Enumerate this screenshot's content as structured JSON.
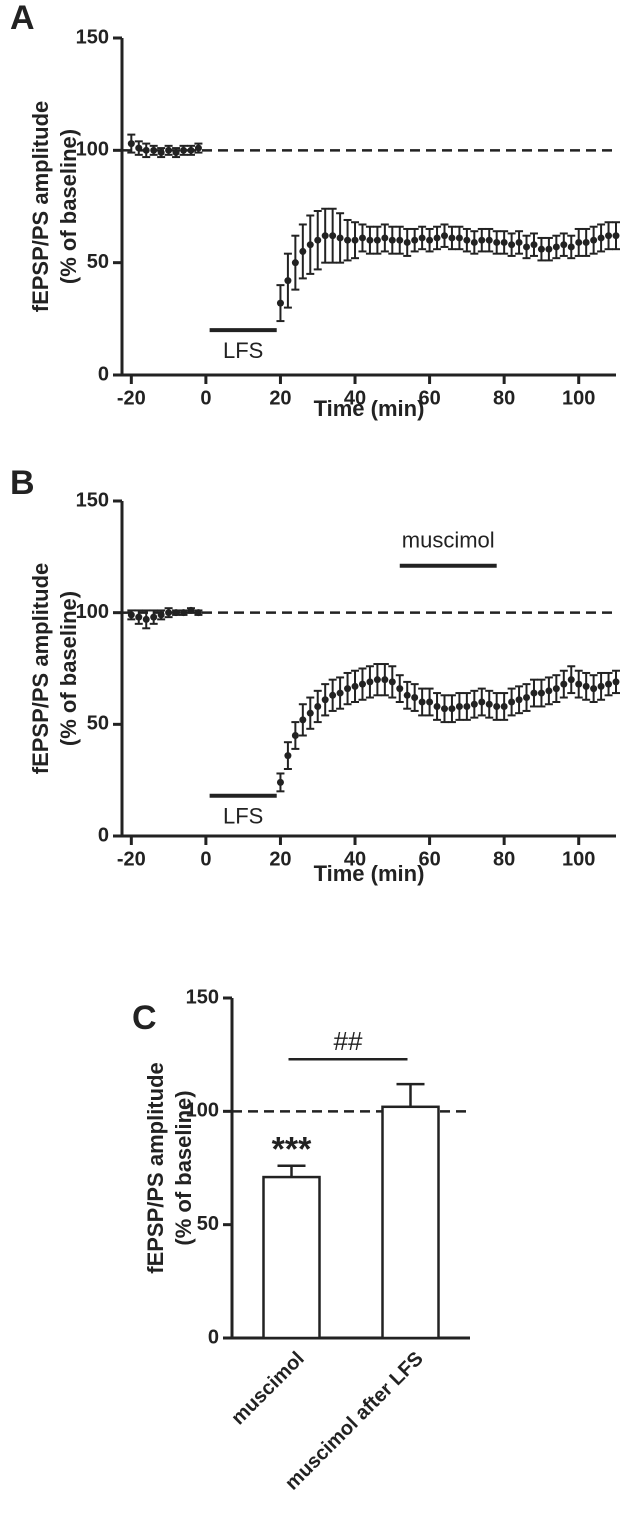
{
  "chart_data": [
    {
      "type": "scatter",
      "label": "A",
      "x_label": "Time (min)",
      "y_label": [
        "fEPSP/PS amplitude",
        "(% of baseline)"
      ],
      "xlim": [
        -22.5,
        110
      ],
      "xticks": [
        -20,
        0,
        20,
        40,
        60,
        80,
        100
      ],
      "ylim": [
        0,
        150
      ],
      "yticks": [
        0,
        50,
        100,
        150
      ],
      "reference_line": 100,
      "color": "#222222",
      "spans": [
        {
          "label": "LFS",
          "x": [
            1,
            19
          ],
          "y": 20
        }
      ],
      "x": [
        -20,
        -18,
        -16,
        -14,
        -12,
        -10,
        -8,
        -6,
        -4,
        -2,
        20,
        22,
        24,
        26,
        28,
        30,
        32,
        34,
        36,
        38,
        40,
        42,
        44,
        46,
        48,
        50,
        52,
        54,
        56,
        58,
        60,
        62,
        64,
        66,
        68,
        70,
        72,
        74,
        76,
        78,
        80,
        82,
        84,
        86,
        88,
        90,
        92,
        94,
        96,
        98,
        100,
        102,
        104,
        106,
        108,
        110
      ],
      "values": [
        103,
        101,
        100,
        100,
        99,
        100,
        99,
        100,
        100,
        101,
        32,
        42,
        50,
        55,
        58,
        60,
        62,
        62,
        61,
        60,
        60,
        61,
        60,
        60,
        61,
        60,
        60,
        59,
        60,
        61,
        60,
        61,
        62,
        61,
        61,
        60,
        59,
        60,
        60,
        59,
        59,
        58,
        59,
        57,
        58,
        56,
        56,
        57,
        58,
        57,
        59,
        59,
        60,
        61,
        62,
        62
      ],
      "errors": [
        4,
        3,
        3,
        2,
        2,
        2,
        2,
        2,
        2,
        2,
        8,
        12,
        12,
        12,
        13,
        13,
        12,
        12,
        11,
        9,
        8,
        6,
        6,
        6,
        6,
        6,
        6,
        6,
        5,
        5,
        5,
        5,
        5,
        5,
        5,
        5,
        5,
        5,
        5,
        5,
        5,
        5,
        5,
        5,
        5,
        5,
        5,
        5,
        5,
        5,
        6,
        6,
        6,
        6,
        6,
        6
      ]
    },
    {
      "type": "scatter",
      "label": "B",
      "x_label": "Time (min)",
      "y_label": [
        "fEPSP/PS amplitude",
        "(% of baseline)"
      ],
      "xlim": [
        -22.5,
        110
      ],
      "xticks": [
        -20,
        0,
        20,
        40,
        60,
        80,
        100
      ],
      "ylim": [
        0,
        150
      ],
      "yticks": [
        0,
        50,
        100,
        150
      ],
      "reference_line": 100,
      "color": "#222222",
      "spans": [
        {
          "label": "LFS",
          "x": [
            1,
            19
          ],
          "y": 18
        },
        {
          "label": "muscimol",
          "x": [
            52,
            78
          ],
          "y": 121
        }
      ],
      "x": [
        -20,
        -18,
        -16,
        -14,
        -12,
        -10,
        -8,
        -6,
        -4,
        -2,
        20,
        22,
        24,
        26,
        28,
        30,
        32,
        34,
        36,
        38,
        40,
        42,
        44,
        46,
        48,
        50,
        52,
        54,
        56,
        58,
        60,
        62,
        64,
        66,
        68,
        70,
        72,
        74,
        76,
        78,
        80,
        82,
        84,
        86,
        88,
        90,
        92,
        94,
        96,
        98,
        100,
        102,
        104,
        106,
        108,
        110
      ],
      "values": [
        99,
        98,
        97,
        98,
        99,
        100,
        100,
        100,
        101,
        100,
        24,
        36,
        45,
        52,
        55,
        58,
        61,
        63,
        64,
        66,
        67,
        68,
        69,
        70,
        70,
        69,
        66,
        63,
        62,
        60,
        60,
        58,
        57,
        57,
        58,
        58,
        59,
        60,
        59,
        58,
        58,
        60,
        61,
        62,
        64,
        64,
        65,
        66,
        68,
        70,
        68,
        67,
        66,
        67,
        68,
        69
      ],
      "errors": [
        2,
        3,
        4,
        3,
        2,
        2,
        1,
        1,
        1,
        1,
        4,
        6,
        6,
        7,
        7,
        7,
        7,
        7,
        7,
        7,
        7,
        7,
        7,
        7,
        7,
        7,
        6,
        6,
        6,
        6,
        6,
        6,
        6,
        6,
        6,
        6,
        6,
        6,
        6,
        6,
        6,
        6,
        6,
        6,
        6,
        6,
        6,
        6,
        6,
        6,
        6,
        6,
        6,
        6,
        5,
        5
      ]
    },
    {
      "type": "bar",
      "label": "C",
      "y_label": [
        "fEPSP/PS amplitude",
        "(% of baseline)"
      ],
      "ylim": [
        0,
        150
      ],
      "yticks": [
        0,
        50,
        100,
        150
      ],
      "reference_line": 100,
      "color": "#ffffff",
      "categories": [
        "muscimol",
        "muscimol after LFS"
      ],
      "values": [
        71,
        102
      ],
      "errors": [
        5,
        10
      ],
      "significance": "***",
      "comparison": {
        "text": "##",
        "y": 123
      }
    }
  ]
}
